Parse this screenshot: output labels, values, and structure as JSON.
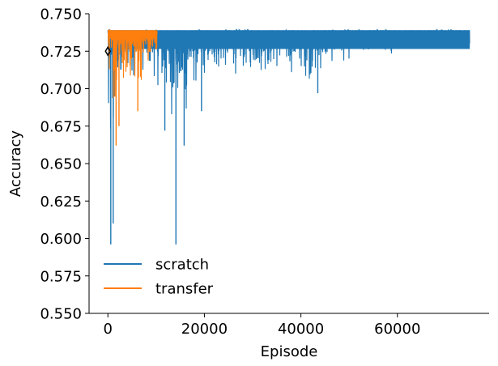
{
  "chart_data": {
    "type": "line",
    "title": "",
    "xlabel": "Episode",
    "ylabel": "Accuracy",
    "xlim": [
      -3900,
      79000
    ],
    "ylim": [
      0.55,
      0.75
    ],
    "xticks": [
      0,
      20000,
      40000,
      60000
    ],
    "xtick_labels": [
      "0",
      "20000",
      "40000",
      "60000"
    ],
    "yticks": [
      0.55,
      0.575,
      0.6,
      0.625,
      0.65,
      0.675,
      0.7,
      0.725,
      0.75
    ],
    "ytick_labels": [
      "0.550",
      "0.575",
      "0.600",
      "0.625",
      "0.650",
      "0.675",
      "0.700",
      "0.725",
      "0.750"
    ],
    "grid": false,
    "legend_position": "lower-left",
    "colors": {
      "scratch": "#1f77b4",
      "transfer": "#ff7f0e",
      "marker": "#000000"
    },
    "series": [
      {
        "name": "scratch",
        "x_range": [
          0,
          75000
        ],
        "max": 0.739,
        "notes_band": [
          [
            0,
            0.596,
            0.739
          ],
          [
            500,
            0.596,
            0.739
          ],
          [
            1000,
            0.596,
            0.739
          ],
          [
            1200,
            0.62,
            0.739
          ],
          [
            1500,
            0.66,
            0.739
          ],
          [
            2000,
            0.67,
            0.739
          ],
          [
            3000,
            0.69,
            0.739
          ],
          [
            4000,
            0.7,
            0.739
          ],
          [
            6000,
            0.705,
            0.739
          ],
          [
            8000,
            0.705,
            0.739
          ],
          [
            10000,
            0.7,
            0.739
          ],
          [
            11000,
            0.685,
            0.739
          ],
          [
            12000,
            0.673,
            0.739
          ],
          [
            13000,
            0.67,
            0.739
          ],
          [
            14000,
            0.672,
            0.739
          ],
          [
            15000,
            0.668,
            0.739
          ],
          [
            16000,
            0.66,
            0.739
          ],
          [
            17000,
            0.685,
            0.739
          ],
          [
            20000,
            0.7,
            0.739
          ],
          [
            25000,
            0.705,
            0.739
          ],
          [
            30000,
            0.705,
            0.739
          ],
          [
            35000,
            0.705,
            0.739
          ],
          [
            40000,
            0.705,
            0.739
          ],
          [
            43000,
            0.697,
            0.739
          ],
          [
            45000,
            0.71,
            0.739
          ],
          [
            50000,
            0.715,
            0.739
          ],
          [
            55000,
            0.72,
            0.739
          ],
          [
            60000,
            0.722,
            0.739
          ],
          [
            63000,
            0.726,
            0.739
          ],
          [
            65000,
            0.726,
            0.739
          ],
          [
            70000,
            0.726,
            0.739
          ],
          [
            75000,
            0.726,
            0.739
          ]
        ],
        "dips": [
          [
            14100,
            0.596
          ],
          [
            600,
            0.596
          ],
          [
            1100,
            0.61
          ],
          [
            11800,
            0.672
          ],
          [
            15800,
            0.662
          ],
          [
            43500,
            0.697
          ],
          [
            19400,
            0.685
          ]
        ]
      },
      {
        "name": "transfer",
        "x_range": [
          0,
          10200
        ],
        "max": 0.739,
        "notes_band": [
          [
            0,
            0.68,
            0.739
          ],
          [
            300,
            0.67,
            0.739
          ],
          [
            1000,
            0.67,
            0.739
          ],
          [
            1500,
            0.662,
            0.739
          ],
          [
            2000,
            0.68,
            0.739
          ],
          [
            3000,
            0.69,
            0.739
          ],
          [
            4000,
            0.695,
            0.739
          ],
          [
            5000,
            0.695,
            0.739
          ],
          [
            6000,
            0.685,
            0.739
          ],
          [
            7000,
            0.7,
            0.739
          ],
          [
            8000,
            0.705,
            0.739
          ],
          [
            9000,
            0.705,
            0.739
          ],
          [
            10000,
            0.705,
            0.739
          ],
          [
            10200,
            0.739,
            0.739
          ]
        ],
        "dips": [
          [
            1700,
            0.662
          ],
          [
            2300,
            0.675
          ],
          [
            6200,
            0.685
          ]
        ]
      }
    ],
    "marker": {
      "shape": "diamond",
      "x": 0,
      "y": 0.725
    }
  }
}
